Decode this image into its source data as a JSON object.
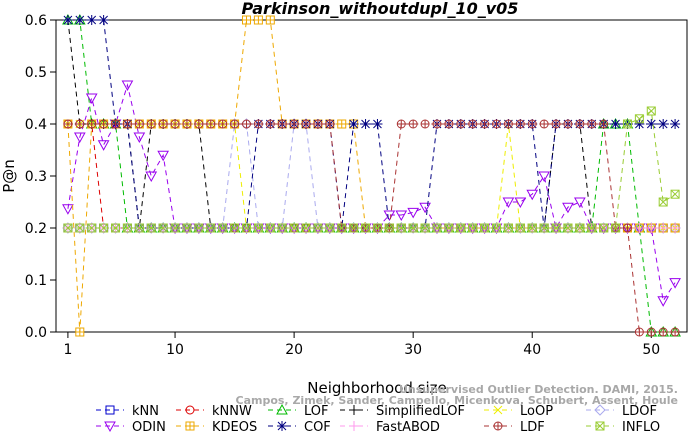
{
  "chart_data": {
    "type": "line",
    "title": "Parkinson_withoutdupl_10_v05",
    "xlabel": "Neighborhood size",
    "ylabel": "P@n",
    "xlim": [
      0,
      53
    ],
    "ylim": [
      0,
      0.6
    ],
    "xticks": [
      1,
      10,
      20,
      30,
      40,
      50
    ],
    "yticks": [
      0.0,
      0.1,
      0.2,
      0.3,
      0.4,
      0.5,
      0.6
    ],
    "grid": false,
    "legend_position": "bottom",
    "credit": {
      "line1": "Unsupervised Outlier Detection. DAMI, 2015.",
      "line2": "Campos, Zimek, Sander, Campello, Micenkova, Schubert, Assent, Houle"
    },
    "x": [
      1,
      2,
      3,
      4,
      5,
      6,
      7,
      8,
      9,
      10,
      11,
      12,
      13,
      14,
      15,
      16,
      17,
      18,
      19,
      20,
      21,
      22,
      23,
      24,
      25,
      26,
      27,
      28,
      29,
      30,
      31,
      32,
      33,
      34,
      35,
      36,
      37,
      38,
      39,
      40,
      41,
      42,
      43,
      44,
      45,
      46,
      47,
      48,
      49,
      50,
      51,
      52
    ],
    "series": [
      {
        "name": "kNN",
        "color": "#0000cc",
        "marker": "square",
        "values": [
          0.2,
          0.2,
          0.2,
          0.2,
          0.2,
          0.2,
          0.2,
          0.2,
          0.2,
          0.2,
          0.2,
          0.2,
          0.2,
          0.2,
          0.2,
          0.2,
          0.2,
          0.2,
          0.2,
          0.2,
          0.2,
          0.2,
          0.2,
          0.2,
          0.2,
          0.2,
          0.2,
          0.2,
          0.2,
          0.2,
          0.2,
          0.2,
          0.2,
          0.2,
          0.2,
          0.2,
          0.2,
          0.2,
          0.2,
          0.2,
          0.2,
          0.2,
          0.2,
          0.2,
          0.2,
          0.2,
          0.2,
          0.2,
          0.2,
          0.2,
          0.2,
          0.2
        ]
      },
      {
        "name": "kNNW",
        "color": "#dd0000",
        "marker": "circle",
        "values": [
          0.4,
          0.4,
          0.4,
          0.2,
          0.2,
          0.2,
          0.2,
          0.2,
          0.2,
          0.2,
          0.2,
          0.2,
          0.2,
          0.2,
          0.2,
          0.2,
          0.2,
          0.2,
          0.2,
          0.2,
          0.2,
          0.2,
          0.2,
          0.2,
          0.2,
          0.2,
          0.2,
          0.2,
          0.2,
          0.2,
          0.2,
          0.2,
          0.2,
          0.2,
          0.2,
          0.2,
          0.2,
          0.2,
          0.2,
          0.2,
          0.2,
          0.2,
          0.2,
          0.2,
          0.2,
          0.2,
          0.2,
          0.2,
          0.2,
          0.2,
          0.2,
          0.2
        ]
      },
      {
        "name": "LOF",
        "color": "#00bb00",
        "marker": "triangle",
        "values": [
          0.6,
          0.6,
          0.4,
          0.4,
          0.4,
          0.2,
          0.2,
          0.2,
          0.2,
          0.2,
          0.2,
          0.2,
          0.2,
          0.2,
          0.2,
          0.2,
          0.2,
          0.2,
          0.2,
          0.2,
          0.2,
          0.2,
          0.2,
          0.2,
          0.2,
          0.2,
          0.2,
          0.2,
          0.2,
          0.2,
          0.2,
          0.2,
          0.2,
          0.2,
          0.2,
          0.2,
          0.2,
          0.2,
          0.2,
          0.2,
          0.2,
          0.2,
          0.2,
          0.2,
          0.2,
          0.4,
          0.4,
          0.4,
          0.2,
          0.0,
          0.0,
          0.0
        ]
      },
      {
        "name": "SimplifiedLOF",
        "color": "#000000",
        "marker": "plus",
        "values": [
          0.6,
          0.4,
          0.4,
          0.4,
          0.4,
          0.4,
          0.2,
          0.4,
          0.4,
          0.4,
          0.4,
          0.4,
          0.2,
          0.2,
          0.2,
          0.2,
          0.2,
          0.2,
          0.2,
          0.2,
          0.2,
          0.2,
          0.2,
          0.2,
          0.2,
          0.2,
          0.2,
          0.2,
          0.2,
          0.2,
          0.2,
          0.2,
          0.2,
          0.2,
          0.2,
          0.2,
          0.2,
          0.2,
          0.2,
          0.2,
          0.2,
          0.4,
          0.4,
          0.4,
          0.2,
          0.2,
          0.2,
          0.2,
          0.2,
          0.2,
          0.2,
          0.2
        ]
      },
      {
        "name": "LoOP",
        "color": "#eeee00",
        "marker": "cross",
        "values": [
          0.4,
          0.4,
          0.4,
          0.4,
          0.4,
          0.4,
          0.4,
          0.4,
          0.4,
          0.4,
          0.4,
          0.4,
          0.4,
          0.4,
          0.4,
          0.2,
          0.2,
          0.2,
          0.2,
          0.2,
          0.2,
          0.2,
          0.2,
          0.2,
          0.2,
          0.2,
          0.2,
          0.2,
          0.2,
          0.2,
          0.2,
          0.2,
          0.2,
          0.2,
          0.2,
          0.2,
          0.2,
          0.4,
          0.2,
          0.2,
          0.2,
          0.2,
          0.2,
          0.2,
          0.2,
          0.2,
          0.2,
          0.2,
          0.2,
          0.2,
          0.2,
          0.2
        ]
      },
      {
        "name": "LDOF",
        "color": "#aaaaee",
        "marker": "diamond",
        "values": [
          0.2,
          0.2,
          0.2,
          0.2,
          0.2,
          0.2,
          0.2,
          0.2,
          0.2,
          0.2,
          0.2,
          0.2,
          0.2,
          0.2,
          0.4,
          0.4,
          0.2,
          0.2,
          0.2,
          0.4,
          0.4,
          0.2,
          0.2,
          0.2,
          0.2,
          0.2,
          0.2,
          0.2,
          0.2,
          0.2,
          0.2,
          0.2,
          0.2,
          0.2,
          0.2,
          0.2,
          0.2,
          0.2,
          0.2,
          0.2,
          0.2,
          0.2,
          0.2,
          0.2,
          0.2,
          0.2,
          0.2,
          0.2,
          0.2,
          0.2,
          0.2,
          0.2
        ]
      },
      {
        "name": "ODIN",
        "color": "#9900ee",
        "marker": "down-triangle",
        "values": [
          0.237,
          0.375,
          0.45,
          0.36,
          0.4,
          0.475,
          0.375,
          0.3,
          0.34,
          0.2,
          0.2,
          0.2,
          0.2,
          0.2,
          0.2,
          0.2,
          0.2,
          0.2,
          0.2,
          0.2,
          0.2,
          0.2,
          0.2,
          0.2,
          0.2,
          0.2,
          0.2,
          0.225,
          0.225,
          0.23,
          0.24,
          0.2,
          0.2,
          0.2,
          0.2,
          0.2,
          0.2,
          0.25,
          0.25,
          0.265,
          0.3,
          0.2,
          0.24,
          0.25,
          0.2,
          0.2,
          0.2,
          0.2,
          0.2,
          0.2,
          0.06,
          0.095
        ]
      },
      {
        "name": "KDEOS",
        "color": "#eea800",
        "marker": "filled-square",
        "values": [
          0.4,
          0.0,
          0.4,
          0.4,
          0.4,
          0.4,
          0.4,
          0.4,
          0.4,
          0.4,
          0.4,
          0.4,
          0.4,
          0.4,
          0.4,
          0.6,
          0.6,
          0.6,
          0.4,
          0.4,
          0.4,
          0.4,
          0.4,
          0.4,
          0.4,
          0.2,
          0.2,
          0.2,
          0.2,
          0.2,
          0.2,
          0.2,
          0.2,
          0.2,
          0.2,
          0.2,
          0.2,
          0.2,
          0.2,
          0.2,
          0.2,
          0.2,
          0.2,
          0.2,
          0.2,
          0.2,
          0.2,
          0.2,
          0.2,
          0.2,
          0.2,
          0.2
        ]
      },
      {
        "name": "COF",
        "color": "#000080",
        "marker": "star",
        "values": [
          0.6,
          0.6,
          0.6,
          0.6,
          0.4,
          0.4,
          0.2,
          0.2,
          0.2,
          0.2,
          0.2,
          0.2,
          0.2,
          0.2,
          0.2,
          0.2,
          0.4,
          0.4,
          0.4,
          0.4,
          0.4,
          0.4,
          0.4,
          0.2,
          0.4,
          0.4,
          0.4,
          0.2,
          0.2,
          0.2,
          0.2,
          0.4,
          0.4,
          0.4,
          0.4,
          0.4,
          0.4,
          0.4,
          0.4,
          0.4,
          0.2,
          0.4,
          0.4,
          0.4,
          0.4,
          0.4,
          0.4,
          0.4,
          0.4,
          0.4,
          0.4,
          0.4
        ]
      },
      {
        "name": "FastABOD",
        "color": "#ff99ee",
        "marker": "plus",
        "values": [
          0.2,
          0.2,
          0.2,
          0.2,
          0.2,
          0.2,
          0.2,
          0.2,
          0.2,
          0.2,
          0.2,
          0.2,
          0.2,
          0.2,
          0.2,
          0.2,
          0.2,
          0.2,
          0.2,
          0.2,
          0.2,
          0.2,
          0.2,
          0.2,
          0.2,
          0.2,
          0.2,
          0.2,
          0.2,
          0.2,
          0.2,
          0.2,
          0.2,
          0.2,
          0.2,
          0.2,
          0.2,
          0.2,
          0.2,
          0.2,
          0.2,
          0.2,
          0.2,
          0.2,
          0.2,
          0.2,
          0.2,
          0.2,
          0.2,
          0.2,
          0.2,
          0.2
        ]
      },
      {
        "name": "LDF",
        "color": "#aa3333",
        "marker": "circle-plus",
        "values": [
          0.4,
          0.4,
          0.4,
          0.4,
          0.4,
          0.4,
          0.4,
          0.4,
          0.4,
          0.4,
          0.4,
          0.4,
          0.4,
          0.4,
          0.4,
          0.4,
          0.4,
          0.4,
          0.4,
          0.4,
          0.4,
          0.4,
          0.4,
          0.2,
          0.2,
          0.2,
          0.2,
          0.2,
          0.4,
          0.4,
          0.4,
          0.4,
          0.4,
          0.4,
          0.4,
          0.4,
          0.4,
          0.4,
          0.4,
          0.4,
          0.4,
          0.4,
          0.4,
          0.4,
          0.4,
          0.4,
          0.2,
          0.2,
          0.0,
          0.0,
          0.0,
          0.0
        ]
      },
      {
        "name": "INFLO",
        "color": "#99cc33",
        "marker": "box-cross",
        "values": [
          0.2,
          0.2,
          0.2,
          0.2,
          0.2,
          0.2,
          0.2,
          0.2,
          0.2,
          0.2,
          0.2,
          0.2,
          0.2,
          0.2,
          0.2,
          0.2,
          0.2,
          0.2,
          0.2,
          0.2,
          0.2,
          0.2,
          0.2,
          0.2,
          0.2,
          0.2,
          0.2,
          0.2,
          0.2,
          0.2,
          0.2,
          0.2,
          0.2,
          0.2,
          0.2,
          0.2,
          0.2,
          0.2,
          0.2,
          0.2,
          0.2,
          0.2,
          0.2,
          0.2,
          0.2,
          0.2,
          0.2,
          0.4,
          0.41,
          0.425,
          0.25,
          0.265
        ]
      }
    ],
    "legend_rows": [
      [
        "kNN",
        "kNNW",
        "LOF",
        "SimplifiedLOF",
        "LoOP",
        "LDOF"
      ],
      [
        "ODIN",
        "KDEOS",
        "COF",
        "FastABOD",
        "LDF",
        "INFLO"
      ]
    ]
  }
}
